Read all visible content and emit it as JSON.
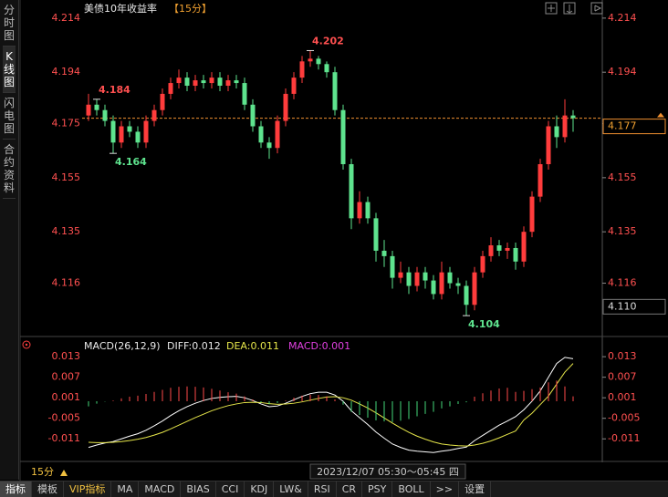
{
  "sidebar": [
    "分时图",
    "K线图",
    "闪电图",
    "合约资料"
  ],
  "chart_data": [
    {
      "type": "candlestick",
      "title": "美债10年收益率",
      "subtitle": "【15分】",
      "open": [
        4.178,
        4.182,
        4.18,
        4.176,
        4.168,
        4.174,
        4.172,
        4.168,
        4.176,
        4.18,
        4.186,
        4.19,
        4.192,
        4.189,
        4.191,
        4.19,
        4.192,
        4.189,
        4.191,
        4.19,
        4.182,
        4.174,
        4.168,
        4.166,
        4.176,
        4.186,
        4.192,
        4.198,
        4.199,
        4.197,
        4.194,
        4.18,
        4.16,
        4.14,
        4.146,
        4.14,
        4.128,
        4.126,
        4.118,
        4.12,
        4.115,
        4.12,
        4.117,
        4.112,
        4.12,
        4.116,
        4.115,
        4.108,
        4.12,
        4.126,
        4.13,
        4.128,
        4.129,
        4.124,
        4.135,
        4.148,
        4.16,
        4.174,
        4.17,
        4.178
      ],
      "high": [
        4.186,
        4.184,
        4.182,
        4.178,
        4.176,
        4.176,
        4.174,
        4.178,
        4.182,
        4.188,
        4.192,
        4.195,
        4.194,
        4.193,
        4.193,
        4.194,
        4.194,
        4.193,
        4.193,
        4.192,
        4.184,
        4.176,
        4.17,
        4.178,
        4.188,
        4.194,
        4.2,
        4.202,
        4.2,
        4.198,
        4.196,
        4.182,
        4.162,
        4.15,
        4.148,
        4.142,
        4.132,
        4.128,
        4.124,
        4.122,
        4.122,
        4.122,
        4.119,
        4.124,
        4.122,
        4.118,
        4.117,
        4.122,
        4.128,
        4.133,
        4.132,
        4.131,
        4.131,
        4.137,
        4.15,
        4.162,
        4.176,
        4.178,
        4.184,
        4.18
      ],
      "low": [
        4.176,
        4.178,
        4.174,
        4.164,
        4.166,
        4.17,
        4.166,
        4.166,
        4.174,
        4.178,
        4.184,
        4.188,
        4.187,
        4.187,
        4.188,
        4.188,
        4.187,
        4.187,
        4.188,
        4.18,
        4.172,
        4.166,
        4.162,
        4.164,
        4.174,
        4.184,
        4.19,
        4.196,
        4.195,
        4.192,
        4.178,
        4.158,
        4.136,
        4.138,
        4.138,
        4.124,
        4.122,
        4.114,
        4.116,
        4.112,
        4.113,
        4.114,
        4.11,
        4.11,
        4.114,
        4.112,
        4.104,
        4.106,
        4.118,
        4.124,
        4.126,
        4.125,
        4.121,
        4.122,
        4.133,
        4.146,
        4.158,
        4.166,
        4.168,
        4.172
      ],
      "close": [
        4.182,
        4.18,
        4.176,
        4.168,
        4.174,
        4.172,
        4.168,
        4.176,
        4.18,
        4.186,
        4.19,
        4.192,
        4.189,
        4.191,
        4.19,
        4.192,
        4.189,
        4.191,
        4.19,
        4.182,
        4.174,
        4.168,
        4.166,
        4.176,
        4.186,
        4.192,
        4.198,
        4.199,
        4.197,
        4.194,
        4.18,
        4.16,
        4.14,
        4.146,
        4.14,
        4.128,
        4.126,
        4.118,
        4.12,
        4.115,
        4.12,
        4.117,
        4.112,
        4.12,
        4.116,
        4.115,
        4.108,
        4.12,
        4.126,
        4.13,
        4.128,
        4.129,
        4.124,
        4.135,
        4.148,
        4.16,
        4.174,
        4.17,
        4.178,
        4.177
      ],
      "up_color": "#ff3c3c",
      "down_color": "#5ee38e",
      "ylim": [
        4.1,
        4.218
      ],
      "yticks": [
        4.214,
        4.194,
        4.175,
        4.155,
        4.135,
        4.116
      ],
      "annotations": [
        4.202,
        4.164,
        4.184,
        4.104
      ],
      "last_price": 4.177,
      "marker_price": {
        "value": 4.11,
        "label": "4.110"
      }
    },
    {
      "type": "macd",
      "title": "MACD(26,12,9)",
      "series": [
        {
          "name": "DIFF:0.012",
          "color": "#ffffff",
          "values": [
            -0.0135,
            -0.0128,
            -0.0122,
            -0.0118,
            -0.011,
            -0.0102,
            -0.0095,
            -0.0085,
            -0.0072,
            -0.0058,
            -0.0042,
            -0.0028,
            -0.0016,
            -0.0006,
            0.0002,
            0.0008,
            0.0011,
            0.0013,
            0.0014,
            0.001,
            0.0002,
            -0.0008,
            -0.0016,
            -0.0014,
            -0.0006,
            0.0004,
            0.0014,
            0.0022,
            0.0026,
            0.0026,
            0.0018,
            0.0,
            -0.0028,
            -0.0048,
            -0.0068,
            -0.009,
            -0.0108,
            -0.0125,
            -0.0135,
            -0.0143,
            -0.0146,
            -0.0148,
            -0.015,
            -0.0146,
            -0.0143,
            -0.0138,
            -0.0134,
            -0.0115,
            -0.01,
            -0.0085,
            -0.007,
            -0.0058,
            -0.0045,
            -0.0025,
            0.0,
            0.003,
            0.007,
            0.011,
            0.0128,
            0.0124
          ]
        },
        {
          "name": "DEA:0.011",
          "color": "#e6e64a",
          "values": [
            -0.012,
            -0.0121,
            -0.0121,
            -0.012,
            -0.0118,
            -0.0115,
            -0.0111,
            -0.0106,
            -0.0099,
            -0.0091,
            -0.0081,
            -0.007,
            -0.0059,
            -0.0048,
            -0.0038,
            -0.0028,
            -0.002,
            -0.0013,
            -0.0008,
            -0.0004,
            -0.0003,
            -0.0004,
            -0.0007,
            -0.0009,
            -0.0008,
            -0.0006,
            -0.0002,
            0.0003,
            0.0008,
            0.0012,
            0.0013,
            0.001,
            0.0003,
            -0.0008,
            -0.002,
            -0.0034,
            -0.0049,
            -0.0064,
            -0.0078,
            -0.0091,
            -0.0102,
            -0.0111,
            -0.0119,
            -0.0125,
            -0.0128,
            -0.013,
            -0.0131,
            -0.0128,
            -0.0123,
            -0.0116,
            -0.0107,
            -0.0097,
            -0.0087,
            -0.0055,
            -0.0035,
            -0.001,
            0.0015,
            0.005,
            0.0085,
            0.011
          ]
        },
        {
          "name": "MACD:0.001",
          "color": "#e040e0",
          "up_color": "#ff4a4a",
          "down_color": "#44d87a",
          "values": [
            -0.0015,
            -0.0007,
            -0.0001,
            0.0002,
            0.0008,
            0.0013,
            0.0016,
            0.0021,
            0.0027,
            0.0033,
            0.0039,
            0.0042,
            0.0043,
            0.0042,
            0.004,
            0.0036,
            0.0031,
            0.0026,
            0.0022,
            0.0014,
            0.0005,
            -0.0004,
            -0.0009,
            -0.0005,
            0.0002,
            0.001,
            0.0016,
            0.0019,
            0.0018,
            0.0014,
            0.0005,
            -0.001,
            -0.0031,
            -0.004,
            -0.0048,
            -0.0056,
            -0.0059,
            -0.0061,
            -0.0057,
            -0.0052,
            -0.0044,
            -0.0037,
            -0.0031,
            -0.0021,
            -0.0015,
            -0.0008,
            -0.0003,
            0.0013,
            0.0023,
            0.0031,
            0.0037,
            0.0039,
            0.0027,
            0.003,
            0.0035,
            0.004,
            0.0055,
            0.006,
            0.0043,
            0.0014
          ]
        }
      ],
      "ylim": [
        -0.016,
        0.0165
      ],
      "yticks": [
        0.013,
        0.007,
        0.001,
        -0.005,
        -0.011
      ]
    }
  ],
  "footer": {
    "period": "15分",
    "time": "2023/12/07 05:30～05:45 四",
    "tabs": [
      "指标",
      "模板",
      "VIP指标",
      "MA",
      "MACD",
      "BIAS",
      "CCI",
      "KDJ",
      "LW&",
      "RSI",
      "CR",
      "PSY",
      "BOLL",
      ">>",
      "设置"
    ]
  }
}
